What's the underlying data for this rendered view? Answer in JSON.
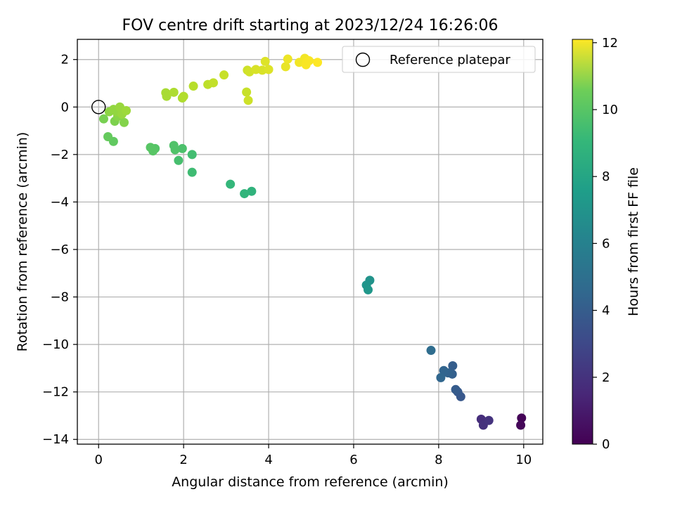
{
  "chart_data": {
    "type": "scatter",
    "title": "FOV centre drift starting at 2023/12/24 16:26:06",
    "xlabel": "Angular distance from reference (arcmin)",
    "ylabel": "Rotation from reference (arcmin)",
    "xlim": [
      -0.5,
      10.45
    ],
    "ylim": [
      -14.2,
      2.85
    ],
    "xticks": [
      0,
      2,
      4,
      6,
      8,
      10
    ],
    "yticks": [
      2,
      0,
      -2,
      -4,
      -6,
      -8,
      -10,
      -12,
      -14
    ],
    "grid": true,
    "legend": {
      "placement": "top-right",
      "label": "Reference platepar"
    },
    "reference_point": {
      "x": 0,
      "y": 0
    },
    "colorbar": {
      "label": "Hours from first FF file",
      "range": [
        0,
        12.1
      ],
      "ticks": [
        0,
        2,
        4,
        6,
        8,
        10,
        12
      ],
      "colormap": "viridis"
    },
    "points": [
      {
        "x": 9.95,
        "y": -13.1,
        "h": 0.1
      },
      {
        "x": 9.93,
        "y": -13.4,
        "h": 0.2
      },
      {
        "x": 9.0,
        "y": -13.15,
        "h": 1.6
      },
      {
        "x": 9.05,
        "y": -13.4,
        "h": 1.7
      },
      {
        "x": 9.18,
        "y": -13.2,
        "h": 1.8
      },
      {
        "x": 8.52,
        "y": -12.2,
        "h": 3.3
      },
      {
        "x": 8.45,
        "y": -12.0,
        "h": 3.4
      },
      {
        "x": 8.4,
        "y": -11.9,
        "h": 3.5
      },
      {
        "x": 8.33,
        "y": -10.9,
        "h": 3.6
      },
      {
        "x": 8.32,
        "y": -11.25,
        "h": 3.7
      },
      {
        "x": 8.22,
        "y": -11.2,
        "h": 3.8
      },
      {
        "x": 8.12,
        "y": -11.1,
        "h": 3.9
      },
      {
        "x": 8.05,
        "y": -11.4,
        "h": 4.0
      },
      {
        "x": 7.82,
        "y": -10.25,
        "h": 4.3
      },
      {
        "x": 6.38,
        "y": -7.3,
        "h": 6.2
      },
      {
        "x": 6.3,
        "y": -7.5,
        "h": 6.3
      },
      {
        "x": 6.34,
        "y": -7.7,
        "h": 6.4
      },
      {
        "x": 3.6,
        "y": -3.55,
        "h": 7.8
      },
      {
        "x": 3.43,
        "y": -3.65,
        "h": 7.9
      },
      {
        "x": 3.1,
        "y": -3.25,
        "h": 8.0
      },
      {
        "x": 2.2,
        "y": -2.75,
        "h": 8.3
      },
      {
        "x": 2.2,
        "y": -2.0,
        "h": 8.4
      },
      {
        "x": 1.88,
        "y": -2.25,
        "h": 8.5
      },
      {
        "x": 1.97,
        "y": -1.75,
        "h": 8.6
      },
      {
        "x": 1.8,
        "y": -1.8,
        "h": 8.7
      },
      {
        "x": 1.77,
        "y": -1.62,
        "h": 8.7
      },
      {
        "x": 1.33,
        "y": -1.75,
        "h": 8.8
      },
      {
        "x": 1.28,
        "y": -1.85,
        "h": 8.9
      },
      {
        "x": 1.22,
        "y": -1.7,
        "h": 8.9
      },
      {
        "x": 0.35,
        "y": -1.45,
        "h": 9.1
      },
      {
        "x": 0.22,
        "y": -1.25,
        "h": 9.2
      },
      {
        "x": 0.12,
        "y": -0.5,
        "h": 9.6
      },
      {
        "x": 0.38,
        "y": -0.6,
        "h": 9.7
      },
      {
        "x": 0.6,
        "y": -0.65,
        "h": 9.8
      },
      {
        "x": 0.45,
        "y": -0.4,
        "h": 9.9
      },
      {
        "x": 0.25,
        "y": -0.2,
        "h": 10.0
      },
      {
        "x": 0.35,
        "y": -0.1,
        "h": 10.1
      },
      {
        "x": 0.42,
        "y": -0.2,
        "h": 10.1
      },
      {
        "x": 0.5,
        "y": 0.0,
        "h": 10.2
      },
      {
        "x": 0.55,
        "y": -0.3,
        "h": 10.2
      },
      {
        "x": 0.65,
        "y": -0.15,
        "h": 10.3
      },
      {
        "x": 1.58,
        "y": 0.6,
        "h": 10.5
      },
      {
        "x": 1.6,
        "y": 0.45,
        "h": 10.5
      },
      {
        "x": 1.77,
        "y": 0.62,
        "h": 10.6
      },
      {
        "x": 1.97,
        "y": 0.38,
        "h": 10.6
      },
      {
        "x": 2.0,
        "y": 0.45,
        "h": 10.7
      },
      {
        "x": 2.23,
        "y": 0.88,
        "h": 10.8
      },
      {
        "x": 2.57,
        "y": 0.95,
        "h": 10.9
      },
      {
        "x": 2.7,
        "y": 1.02,
        "h": 11.0
      },
      {
        "x": 2.95,
        "y": 1.35,
        "h": 11.1
      },
      {
        "x": 3.48,
        "y": 0.63,
        "h": 11.1
      },
      {
        "x": 3.5,
        "y": 1.55,
        "h": 11.2
      },
      {
        "x": 3.52,
        "y": 0.28,
        "h": 11.2
      },
      {
        "x": 3.55,
        "y": 1.48,
        "h": 11.3
      },
      {
        "x": 3.7,
        "y": 1.58,
        "h": 11.4
      },
      {
        "x": 3.85,
        "y": 1.55,
        "h": 11.4
      },
      {
        "x": 3.92,
        "y": 1.92,
        "h": 11.5
      },
      {
        "x": 4.0,
        "y": 1.58,
        "h": 11.5
      },
      {
        "x": 4.4,
        "y": 1.7,
        "h": 11.7
      },
      {
        "x": 4.45,
        "y": 2.02,
        "h": 11.8
      },
      {
        "x": 4.72,
        "y": 1.88,
        "h": 11.9
      },
      {
        "x": 4.85,
        "y": 2.05,
        "h": 11.9
      },
      {
        "x": 4.88,
        "y": 1.78,
        "h": 12.0
      },
      {
        "x": 4.9,
        "y": 1.9,
        "h": 12.0
      },
      {
        "x": 4.95,
        "y": 1.95,
        "h": 12.0
      },
      {
        "x": 5.15,
        "y": 1.88,
        "h": 12.1
      }
    ]
  }
}
